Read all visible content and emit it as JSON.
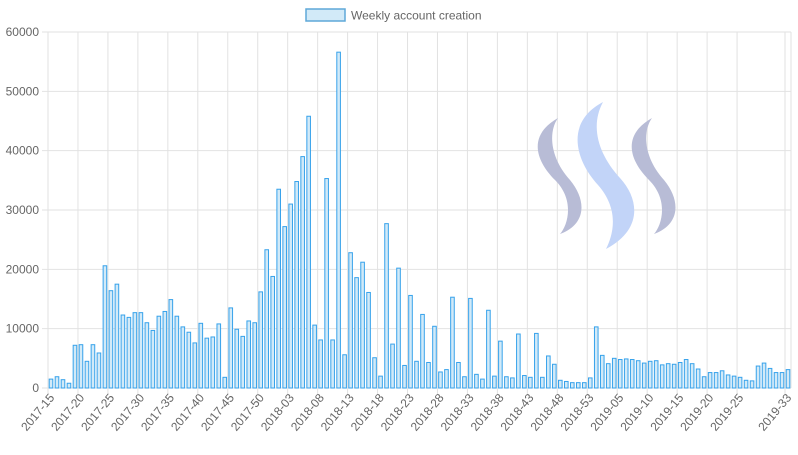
{
  "legend": {
    "label": "Weekly account creation",
    "swatch_fill": "#d2eaf8",
    "swatch_stroke": "#5fa8d8"
  },
  "colors": {
    "bar_fill": "#d2eaf8",
    "bar_stroke": "#36a2eb",
    "grid": "#e2e2e2",
    "text": "#666666",
    "logo_dark": "#b8bcd6",
    "logo_light": "#c2d4f8"
  },
  "logo": {
    "icon": "steem-logo-icon"
  },
  "chart_data": {
    "type": "bar",
    "title": "",
    "xlabel": "",
    "ylabel": "",
    "ylim": [
      0,
      60000
    ],
    "y_ticks": [
      0,
      10000,
      20000,
      30000,
      40000,
      50000,
      60000
    ],
    "grid": true,
    "legend_position": "top-center",
    "x_tick_labels": [
      "2017-15",
      "2017-20",
      "2017-25",
      "2017-30",
      "2017-35",
      "2017-40",
      "2017-45",
      "2017-50",
      "2018-03",
      "2018-08",
      "2018-13",
      "2018-18",
      "2018-23",
      "2018-28",
      "2018-33",
      "2018-38",
      "2018-43",
      "2018-48",
      "2018-53",
      "2019-05",
      "2019-10",
      "2019-15",
      "2019-20",
      "2019-25",
      "2019-33"
    ],
    "series": [
      {
        "name": "Weekly account creation",
        "values": [
          1500,
          1900,
          1400,
          800,
          7200,
          7300,
          4500,
          7300,
          5900,
          20600,
          16400,
          17500,
          12300,
          11900,
          12700,
          12700,
          11000,
          9700,
          12100,
          12900,
          14900,
          12100,
          10300,
          9400,
          7600,
          10900,
          8400,
          8600,
          10800,
          1800,
          13500,
          9900,
          8700,
          11300,
          11000,
          16200,
          23300,
          18800,
          33500,
          27200,
          31000,
          34800,
          39000,
          45800,
          10600,
          8100,
          35300,
          8100,
          56600,
          5600,
          22800,
          18600,
          21200,
          16100,
          5100,
          2000,
          27700,
          7400,
          20200,
          3800,
          15600,
          4500,
          12400,
          4300,
          10400,
          2700,
          3100,
          15300,
          4300,
          1900,
          15100,
          2300,
          1500,
          13100,
          2000,
          7900,
          1900,
          1700,
          9100,
          2100,
          1800,
          9200,
          1800,
          5400,
          4000,
          1300,
          1100,
          900,
          900,
          900,
          1700,
          10300,
          5500,
          4100,
          5000,
          4800,
          4900,
          4800,
          4600,
          4200,
          4500,
          4600,
          3900,
          4100,
          4000,
          4300,
          4800,
          4100,
          3200,
          1900,
          2600,
          2600,
          2900,
          2200,
          2000,
          1800,
          1300,
          1200,
          3700,
          4200,
          3300,
          2600,
          2600,
          3100
        ]
      }
    ]
  }
}
